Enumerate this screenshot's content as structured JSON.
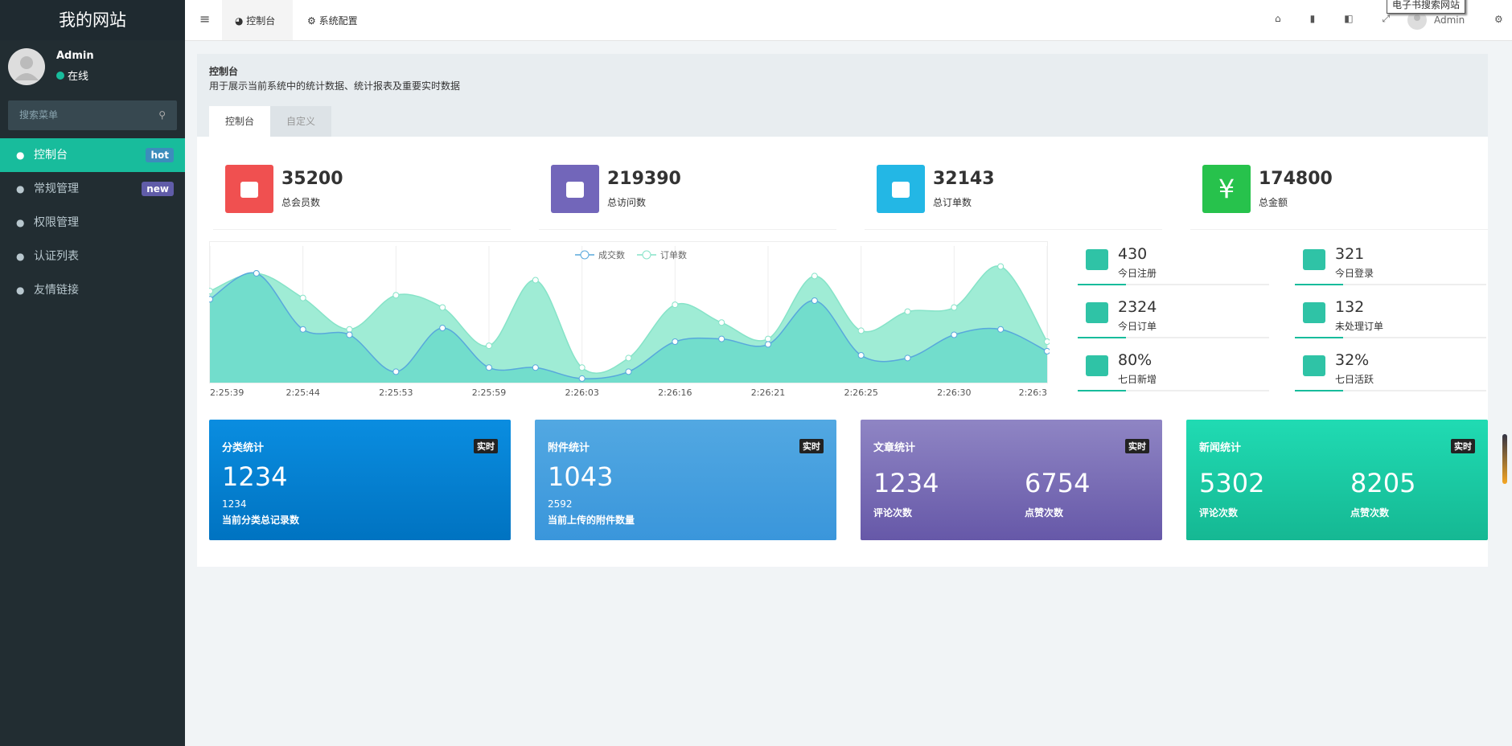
{
  "sidebar": {
    "logo": "我的网站",
    "user": "Admin",
    "status": "在线",
    "search_placeholder": "搜索菜单",
    "menu": [
      {
        "label": "控制台",
        "badge": "hot",
        "badge_color": "#3c8dbc"
      },
      {
        "label": "常规管理",
        "badge": "new",
        "badge_color": "#605ca8"
      },
      {
        "label": "权限管理"
      },
      {
        "label": "认证列表"
      },
      {
        "label": "友情链接"
      }
    ]
  },
  "topbar": {
    "tabs": [
      "控制台",
      "系统配置"
    ],
    "user": "Admin",
    "tooltip": "电子书搜索网站"
  },
  "header": {
    "title": "控制台",
    "description": "用于展示当前系统中的统计数据、统计报表及重要实时数据",
    "tabs": [
      "控制台",
      "自定义"
    ]
  },
  "stats": [
    {
      "value": "35200",
      "label": "总会员数",
      "color": "#f05050"
    },
    {
      "value": "219390",
      "label": "总访问数",
      "color": "#7266ba"
    },
    {
      "value": "32143",
      "label": "总订单数",
      "color": "#23b7e5"
    },
    {
      "value": "174800",
      "label": "总金额",
      "color": "#27c24c",
      "icon": "¥"
    }
  ],
  "mini_stats": [
    {
      "value": "430",
      "label": "今日注册"
    },
    {
      "value": "321",
      "label": "今日登录"
    },
    {
      "value": "2324",
      "label": "今日订单"
    },
    {
      "value": "132",
      "label": "未处理订单"
    },
    {
      "value": "80%",
      "label": "七日新增"
    },
    {
      "value": "32%",
      "label": "七日活跃"
    }
  ],
  "cards": [
    {
      "title": "分类统计",
      "badge": "实时",
      "value": "1234",
      "sub_value": "1234",
      "caption": "当前分类总记录数"
    },
    {
      "title": "附件统计",
      "badge": "实时",
      "value": "1043",
      "sub_value": "2592",
      "caption": "当前上传的附件数量"
    },
    {
      "title": "文章统计",
      "badge": "实时",
      "left_value": "1234",
      "left_label": "评论次数",
      "right_value": "6754",
      "right_label": "点赞次数"
    },
    {
      "title": "新闻统计",
      "badge": "实时",
      "left_value": "5302",
      "left_label": "评论次数",
      "right_value": "8205",
      "right_label": "点赞次数"
    }
  ],
  "chart_data": {
    "type": "area",
    "categories": [
      "2:25:39",
      null,
      "2:25:44",
      null,
      "2:25:53",
      null,
      "2:25:59",
      null,
      "2:26:03",
      null,
      "2:26:16",
      null,
      "2:26:21",
      null,
      "2:26:25",
      null,
      "2:26:30",
      null,
      "2:26:3"
    ],
    "series": [
      {
        "name": "成交数",
        "color": "#58a8dc",
        "fill": "#70dccb",
        "values": [
          61,
          80,
          39,
          35,
          8,
          40,
          11,
          11,
          3,
          8,
          30,
          32,
          28,
          60,
          20,
          18,
          35,
          39,
          23
        ]
      },
      {
        "name": "订单数",
        "color": "#86e3c8",
        "fill": "#9aebd3",
        "values": [
          67,
          80,
          62,
          39,
          64,
          55,
          27,
          75,
          11,
          18,
          57,
          44,
          32,
          78,
          38,
          52,
          55,
          85,
          30
        ]
      }
    ],
    "ylim": [
      0,
      100
    ],
    "grid": true,
    "legend": "top"
  }
}
